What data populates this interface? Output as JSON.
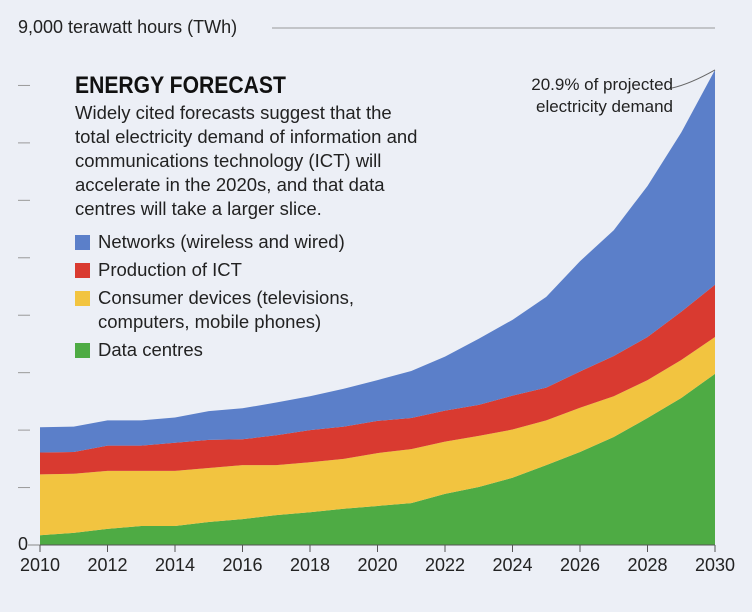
{
  "chart_data": {
    "type": "stacked_area",
    "title": "ENERGY FORECAST",
    "subtitle_lines": [
      "Widely cited forecasts suggest that the",
      "total electricity demand of information and",
      "communications technology (ICT) will",
      "accelerate in the 2020s, and that data",
      "centres will take a larger slice."
    ],
    "annotation": "20.9% of projected electricity demand",
    "x": [
      2010,
      2011,
      2012,
      2013,
      2014,
      2015,
      2016,
      2017,
      2018,
      2019,
      2020,
      2021,
      2022,
      2023,
      2024,
      2025,
      2026,
      2027,
      2028,
      2029,
      2030
    ],
    "xlim": [
      2010,
      2030
    ],
    "xticks": [
      2010,
      2012,
      2014,
      2016,
      2018,
      2020,
      2022,
      2024,
      2026,
      2028,
      2030
    ],
    "ylim": [
      0,
      9000
    ],
    "yticks": [
      0,
      {
        "value": 9000,
        "label": "9,000 terawatt hours (TWh)"
      }
    ],
    "yminor_ticks": [
      1000,
      2000,
      3000,
      4000,
      5000,
      6000,
      7000,
      8000
    ],
    "series": [
      {
        "name": "Networks (wireless and wired)",
        "color": "#5b7fc9",
        "values": [
          440,
          440,
          440,
          440,
          440,
          500,
          540,
          570,
          590,
          660,
          710,
          820,
          940,
          1150,
          1320,
          1580,
          1920,
          2190,
          2630,
          3120,
          3740
        ]
      },
      {
        "name": "Production of ICT",
        "color": "#d93a30",
        "values": [
          380,
          380,
          440,
          440,
          490,
          490,
          450,
          520,
          560,
          560,
          560,
          540,
          540,
          540,
          590,
          570,
          630,
          700,
          750,
          840,
          910
        ]
      },
      {
        "name": "Consumer devices (televisions, computers, mobile phones)",
        "color": "#f2c440",
        "values": [
          1060,
          1030,
          1010,
          960,
          960,
          940,
          940,
          870,
          870,
          870,
          920,
          940,
          910,
          890,
          840,
          780,
          770,
          710,
          660,
          660,
          640
        ]
      },
      {
        "name": "Data centres",
        "color": "#4eab44",
        "values": [
          170,
          210,
          280,
          330,
          330,
          400,
          450,
          520,
          570,
          630,
          680,
          730,
          890,
          1010,
          1170,
          1390,
          1620,
          1880,
          2210,
          2560,
          2980
        ]
      }
    ]
  }
}
